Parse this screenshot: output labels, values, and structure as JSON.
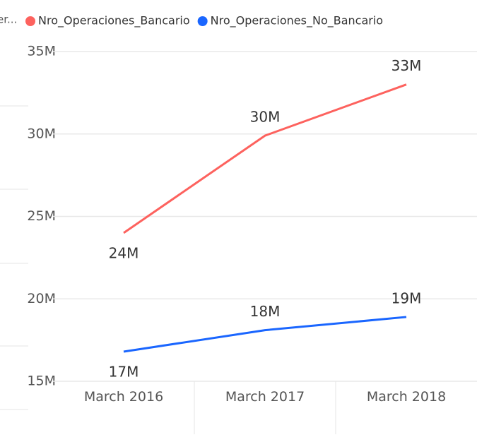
{
  "chart_data": {
    "type": "line",
    "legend_title": "er...",
    "categories": [
      "March 2016",
      "March 2017",
      "March 2018"
    ],
    "series": [
      {
        "name": "Nro_Operaciones_Bancario",
        "color": "#fd625e",
        "values": [
          24.0,
          29.9,
          33.0
        ],
        "value_labels": [
          "24M",
          "30M",
          "33M"
        ]
      },
      {
        "name": "Nro_Operaciones_No_Bancario",
        "color": "#1a66ff",
        "values": [
          16.8,
          18.1,
          18.9
        ],
        "value_labels": [
          "17M",
          "18M",
          "19M"
        ]
      }
    ],
    "ylim": [
      15,
      35
    ],
    "yticks": [
      {
        "value": 15,
        "label": "15M"
      },
      {
        "value": 20,
        "label": "20M"
      },
      {
        "value": 25,
        "label": "25M"
      },
      {
        "value": 30,
        "label": "30M"
      },
      {
        "value": 35,
        "label": "35M"
      }
    ],
    "grid": true,
    "legend": "top"
  }
}
